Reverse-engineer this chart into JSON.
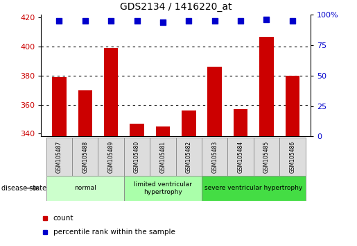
{
  "title": "GDS2134 / 1416220_at",
  "samples": [
    "GSM105487",
    "GSM105488",
    "GSM105489",
    "GSM105480",
    "GSM105481",
    "GSM105482",
    "GSM105483",
    "GSM105484",
    "GSM105485",
    "GSM105486"
  ],
  "counts": [
    379,
    370,
    399,
    347,
    345,
    356,
    386,
    357,
    407,
    380
  ],
  "percentiles": [
    95,
    95,
    95,
    95,
    94,
    95,
    95,
    95,
    96,
    95
  ],
  "ymin": 338,
  "ymax": 422,
  "yticks": [
    340,
    360,
    380,
    400,
    420
  ],
  "right_ytick_vals": [
    0,
    25,
    50,
    75,
    100
  ],
  "right_ytick_labels": [
    "0",
    "25",
    "50",
    "75",
    "100%"
  ],
  "grid_lines": [
    360,
    380,
    400
  ],
  "disease_groups": [
    {
      "label": "normal",
      "start": 0,
      "end": 3,
      "color": "#ccffcc"
    },
    {
      "label": "limited ventricular\nhypertrophy",
      "start": 3,
      "end": 6,
      "color": "#aaffaa"
    },
    {
      "label": "severe ventricular hypertrophy",
      "start": 6,
      "end": 10,
      "color": "#44dd44"
    }
  ],
  "bar_color": "#cc0000",
  "dot_color": "#0000cc",
  "bar_width": 0.55,
  "tick_label_color_left": "#cc0000",
  "tick_label_color_right": "#0000cc",
  "disease_label": "disease state",
  "background_color": "#ffffff",
  "dot_size": 35,
  "label_box_color": "#dddddd",
  "label_box_edge": "#888888"
}
